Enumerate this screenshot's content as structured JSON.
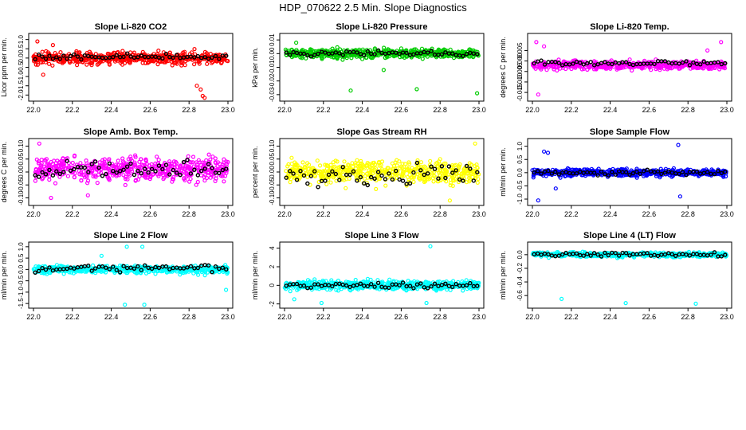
{
  "page": {
    "title": "HDP_070622  2.5 Min. Slope Diagnostics"
  },
  "chart_data": [
    {
      "type": "scatter",
      "title": "Slope Li-820 CO2",
      "ylabel": "Licor ppm per min.",
      "xlabel": "",
      "xlim": [
        22.0,
        23.0
      ],
      "ylim": [
        -2.2,
        1.2
      ],
      "xticks": [
        "22.0",
        "22.2",
        "22.4",
        "22.6",
        "22.8",
        "23.0"
      ],
      "yticks": [
        {
          "v": 1.0,
          "label": "1.0"
        },
        {
          "v": 0.5,
          "label": "0.5"
        },
        {
          "v": 0.0,
          "label": "0.0"
        },
        {
          "v": -0.5,
          "label": "-0.5"
        },
        {
          "v": -1.0,
          "label": "-1.0"
        },
        {
          "v": -1.5,
          "label": "-1.5"
        },
        {
          "v": -2.0,
          "label": "-2.0"
        }
      ],
      "color": "#ff0000",
      "center": 0.0,
      "spread": 0.3,
      "n": 520,
      "outliers": [
        [
          22.84,
          -1.5
        ],
        [
          22.86,
          -1.7
        ],
        [
          22.87,
          -2.05
        ],
        [
          22.88,
          -2.15
        ],
        [
          22.02,
          0.9
        ],
        [
          22.1,
          0.7
        ],
        [
          22.05,
          -0.9
        ]
      ],
      "black": {
        "center": 0.05,
        "spread": 0.12,
        "n": 55
      }
    },
    {
      "type": "scatter",
      "title": "Slope Li-820 Pressure",
      "ylabel": "kPa per min.",
      "xlabel": "",
      "xlim": [
        22.0,
        23.0
      ],
      "ylim": [
        -0.033,
        0.013
      ],
      "xticks": [
        "22.0",
        "22.2",
        "22.4",
        "22.6",
        "22.8",
        "23.0"
      ],
      "yticks": [
        {
          "v": 0.01,
          "label": "0.01"
        },
        {
          "v": 0.0,
          "label": "0.00"
        },
        {
          "v": -0.01,
          "label": "-0.01"
        },
        {
          "v": -0.02,
          "label": "-0.02"
        },
        {
          "v": -0.03,
          "label": "-0.03"
        }
      ],
      "color": "#00cc00",
      "center": 0.0,
      "spread": 0.003,
      "n": 520,
      "outliers": [
        [
          22.34,
          -0.027
        ],
        [
          22.68,
          -0.026
        ],
        [
          22.99,
          -0.029
        ],
        [
          22.51,
          -0.012
        ],
        [
          22.06,
          0.008
        ]
      ],
      "black": {
        "center": 0.0,
        "spread": 0.0015,
        "n": 55
      }
    },
    {
      "type": "scatter",
      "title": "Slope Li-820 Temp.",
      "ylabel": "degrees C per min.",
      "xlabel": "",
      "xlim": [
        22.0,
        23.0
      ],
      "ylim": [
        -0.018,
        0.012
      ],
      "xticks": [
        "22.0",
        "22.2",
        "22.4",
        "22.6",
        "22.8",
        "23.0"
      ],
      "yticks": [
        {
          "v": 0.005,
          "label": "0.005"
        },
        {
          "v": 0.0,
          "label": "0.000"
        },
        {
          "v": -0.005,
          "label": "-0.005"
        },
        {
          "v": -0.01,
          "label": "-0.010"
        },
        {
          "v": -0.015,
          "label": "-0.015"
        }
      ],
      "color": "#ff00ff",
      "center": -0.002,
      "spread": 0.0018,
      "n": 520,
      "outliers": [
        [
          22.02,
          0.009
        ],
        [
          22.03,
          -0.016
        ],
        [
          22.97,
          0.009
        ],
        [
          22.9,
          0.005
        ],
        [
          22.06,
          0.007
        ]
      ],
      "black": {
        "center": -0.001,
        "spread": 0.001,
        "n": 55
      }
    },
    {
      "type": "scatter",
      "title": "Slope Amb. Box Temp.",
      "ylabel": "degrees C per min.",
      "xlabel": "",
      "xlim": [
        22.0,
        23.0
      ],
      "ylim": [
        -0.12,
        0.12
      ],
      "xticks": [
        "22.0",
        "22.2",
        "22.4",
        "22.6",
        "22.8",
        "23.0"
      ],
      "yticks": [
        {
          "v": 0.1,
          "label": "0.10"
        },
        {
          "v": 0.05,
          "label": "0.05"
        },
        {
          "v": 0.0,
          "label": "0.00"
        },
        {
          "v": -0.05,
          "label": "-0.05"
        },
        {
          "v": -0.1,
          "label": "-0.10"
        }
      ],
      "color": "#ff00ff",
      "center": 0.01,
      "spread": 0.04,
      "n": 520,
      "outliers": [
        [
          22.09,
          -0.1
        ],
        [
          22.03,
          0.11
        ],
        [
          22.28,
          -0.09
        ]
      ],
      "black": {
        "center": 0.01,
        "spread": 0.03,
        "n": 55
      }
    },
    {
      "type": "scatter",
      "title": "Slope Gas Stream RH",
      "ylabel": "percent per min.",
      "xlabel": "",
      "xlim": [
        22.0,
        23.0
      ],
      "ylim": [
        -0.12,
        0.12
      ],
      "xticks": [
        "22.0",
        "22.2",
        "22.4",
        "22.6",
        "22.8",
        "23.0"
      ],
      "yticks": [
        {
          "v": 0.1,
          "label": "0.10"
        },
        {
          "v": 0.05,
          "label": "0.05"
        },
        {
          "v": 0.0,
          "label": "0.00"
        },
        {
          "v": -0.05,
          "label": "-0.05"
        },
        {
          "v": -0.1,
          "label": "-0.10"
        }
      ],
      "color": "#ffff00",
      "center": 0.0,
      "spread": 0.04,
      "n": 520,
      "outliers": [
        [
          22.98,
          0.11
        ],
        [
          22.85,
          -0.11
        ]
      ],
      "black": {
        "center": -0.01,
        "spread": 0.035,
        "n": 55
      }
    },
    {
      "type": "scatter",
      "title": "Slope Sample Flow",
      "ylabel": "ml/min per min.",
      "xlabel": "",
      "xlim": [
        22.0,
        23.0
      ],
      "ylim": [
        -1.15,
        1.2
      ],
      "xticks": [
        "22.0",
        "22.2",
        "22.4",
        "22.6",
        "22.8",
        "23.0"
      ],
      "yticks": [
        {
          "v": 1.0,
          "label": "1.0"
        },
        {
          "v": 0.5,
          "label": "0.5"
        },
        {
          "v": 0.0,
          "label": "0.0"
        },
        {
          "v": -0.5,
          "label": "-0.5"
        },
        {
          "v": -1.0,
          "label": "-1.0"
        }
      ],
      "color": "#0000ff",
      "center": 0.0,
      "spread": 0.12,
      "n": 520,
      "outliers": [
        [
          22.75,
          1.05
        ],
        [
          22.76,
          -0.9
        ],
        [
          22.03,
          -1.05
        ],
        [
          22.06,
          0.8
        ],
        [
          22.08,
          0.75
        ],
        [
          22.12,
          -0.6
        ]
      ],
      "black": {
        "center": 0.0,
        "spread": 0.08,
        "n": 55
      }
    },
    {
      "type": "scatter",
      "title": "Slope Line 2 Flow",
      "ylabel": "ml/min per min.",
      "xlabel": "",
      "xlim": [
        22.0,
        23.0
      ],
      "ylim": [
        -1.6,
        1.1
      ],
      "xticks": [
        "22.0",
        "22.2",
        "22.4",
        "22.6",
        "22.8",
        "23.0"
      ],
      "yticks": [
        {
          "v": 1.0,
          "label": "1.0"
        },
        {
          "v": 0.5,
          "label": "0.5"
        },
        {
          "v": 0.0,
          "label": "0.0"
        },
        {
          "v": -0.5,
          "label": "-0.5"
        },
        {
          "v": -1.0,
          "label": "-1.0"
        },
        {
          "v": -1.5,
          "label": "-1.5"
        }
      ],
      "color": "#00ffff",
      "center": 0.0,
      "spread": 0.15,
      "n": 520,
      "outliers": [
        [
          22.47,
          -1.55
        ],
        [
          22.57,
          -1.55
        ],
        [
          22.48,
          1.0
        ],
        [
          22.56,
          1.0
        ],
        [
          22.99,
          -0.9
        ],
        [
          22.35,
          0.6
        ]
      ],
      "black": {
        "center": 0.05,
        "spread": 0.12,
        "n": 55
      }
    },
    {
      "type": "scatter",
      "title": "Slope Line 3 Flow",
      "ylabel": "ml/min per min.",
      "xlabel": "",
      "xlim": [
        22.0,
        23.0
      ],
      "ylim": [
        -2.2,
        4.4
      ],
      "xticks": [
        "22.0",
        "22.2",
        "22.4",
        "22.6",
        "22.8",
        "23.0"
      ],
      "yticks": [
        {
          "v": 4,
          "label": "4"
        },
        {
          "v": 2,
          "label": "2"
        },
        {
          "v": 0,
          "label": "0"
        },
        {
          "v": -2,
          "label": "-2"
        }
      ],
      "color": "#00ffff",
      "center": 0.0,
      "spread": 0.45,
      "n": 520,
      "outliers": [
        [
          22.75,
          4.2
        ],
        [
          22.73,
          -1.9
        ],
        [
          22.19,
          -1.9
        ],
        [
          22.05,
          -1.5
        ]
      ],
      "black": {
        "center": 0.0,
        "spread": 0.25,
        "n": 55
      }
    },
    {
      "type": "scatter",
      "title": "Slope Line 4 (LT) Flow",
      "ylabel": "ml/min per min.",
      "xlabel": "",
      "xlim": [
        22.0,
        23.0
      ],
      "ylim": [
        -0.75,
        0.15
      ],
      "xticks": [
        "22.0",
        "22.2",
        "22.4",
        "22.6",
        "22.8",
        "23.0"
      ],
      "yticks": [
        {
          "v": 0.0,
          "label": "0.0"
        },
        {
          "v": -0.2,
          "label": "-0.2"
        },
        {
          "v": -0.4,
          "label": "-0.4"
        },
        {
          "v": -0.6,
          "label": "-0.6"
        }
      ],
      "color": "#00ffff",
      "center": 0.0,
      "spread": 0.03,
      "n": 520,
      "outliers": [
        [
          22.15,
          -0.65
        ],
        [
          22.48,
          -0.71
        ],
        [
          22.84,
          -0.72
        ]
      ],
      "black": {
        "center": 0.0,
        "spread": 0.025,
        "n": 55
      }
    }
  ]
}
